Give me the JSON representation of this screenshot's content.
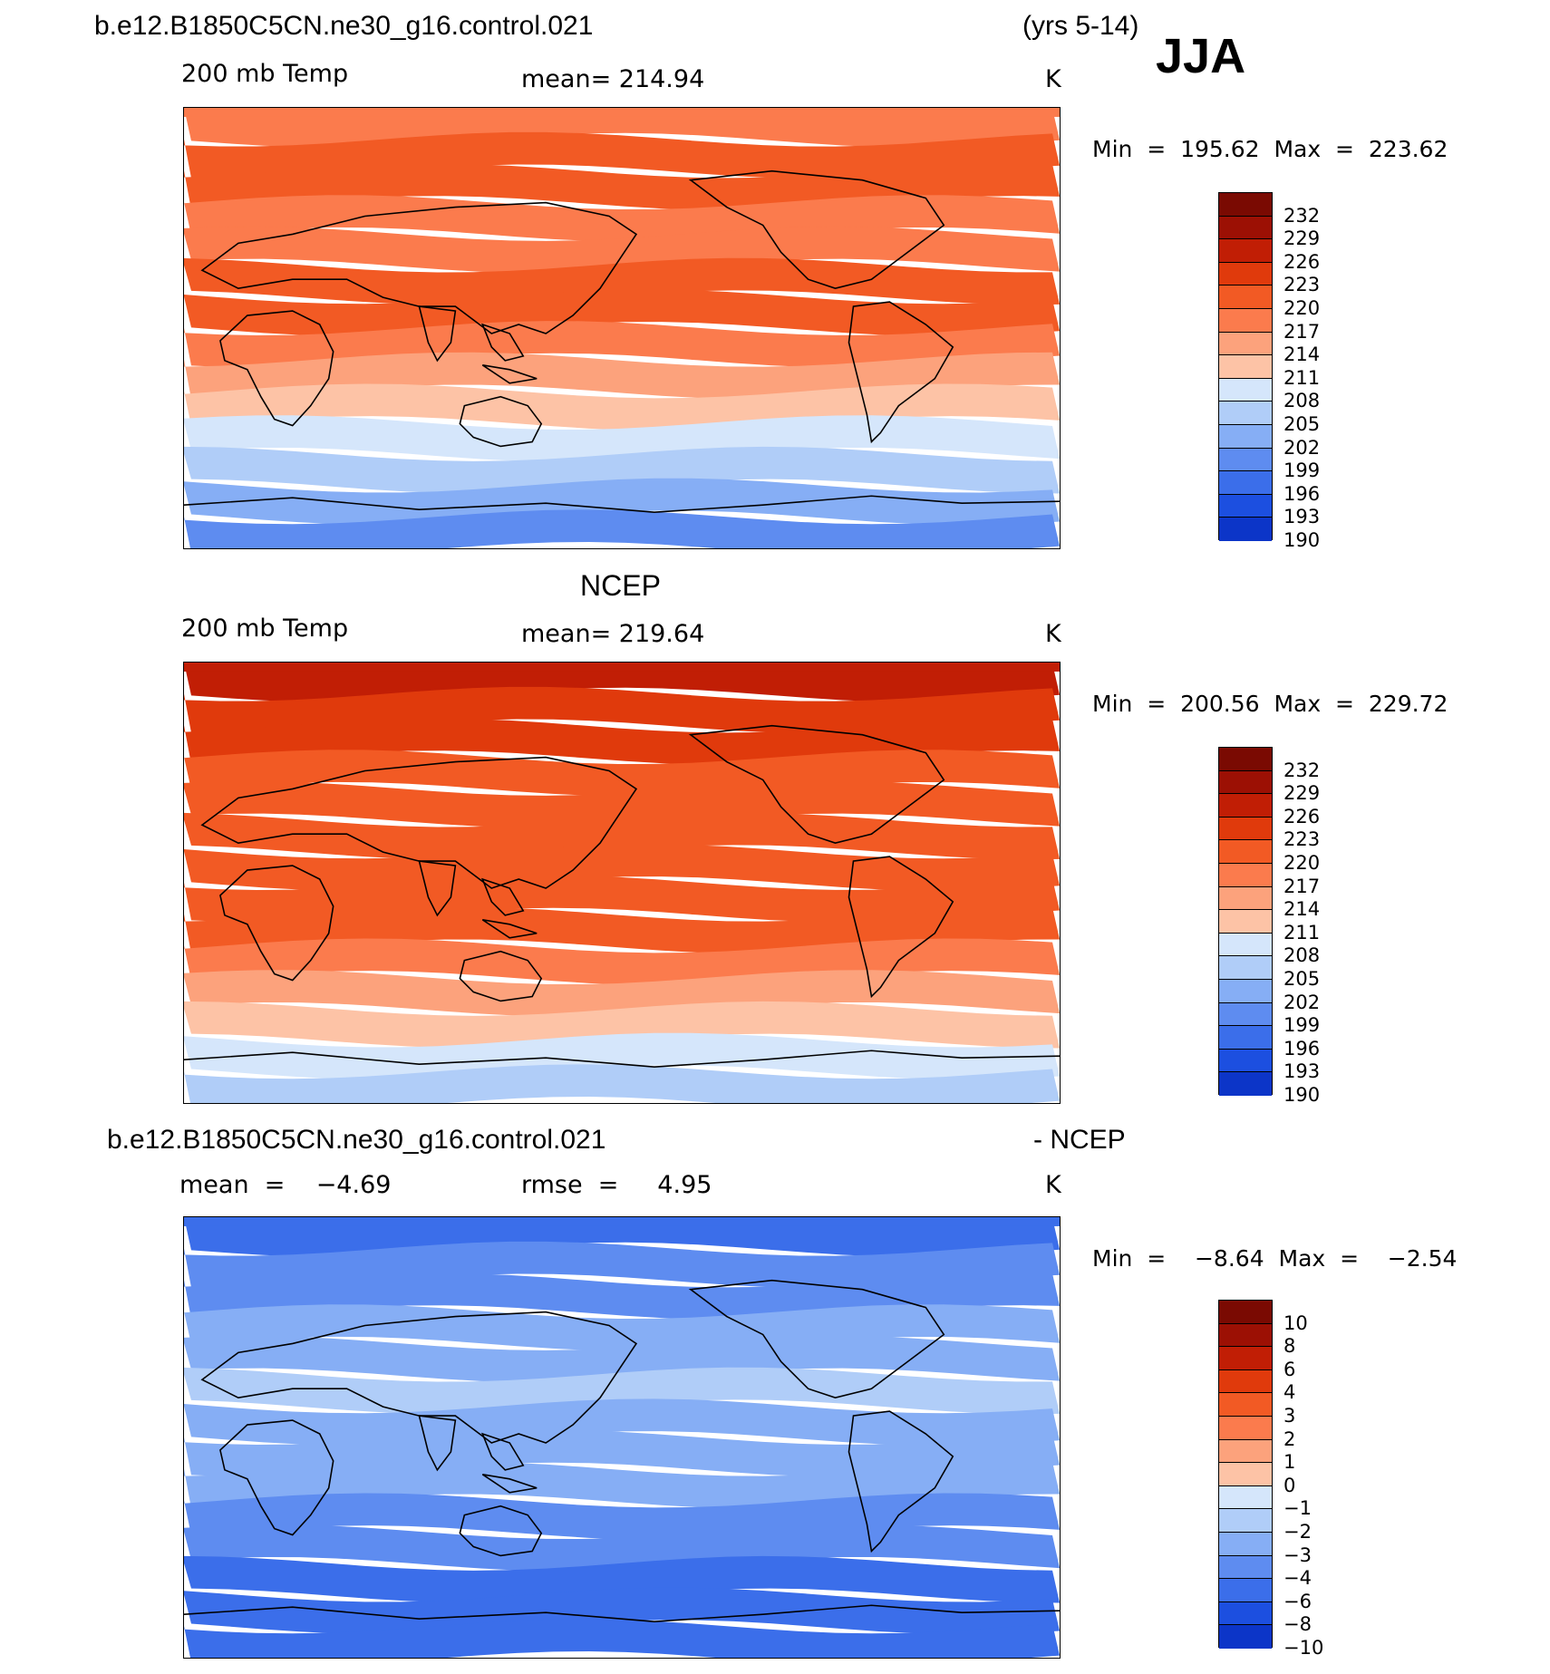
{
  "header": {
    "case_name": "b.e12.B1850C5CN.ne30_g16.control.021",
    "years": "(yrs 5-14)",
    "season": "JJA"
  },
  "colors": {
    "warm": [
      "#fde7d1",
      "#fdc3a6",
      "#fca27c",
      "#fb7b4d",
      "#f25a24",
      "#e03a0c",
      "#c11e05",
      "#9c1004",
      "#7a0a02"
    ],
    "cool": [
      "#d5e6fb",
      "#b0cdf8",
      "#86aef5",
      "#5e8cf0",
      "#3b6eea",
      "#1c4fe0",
      "#0c35c8",
      "#0a2199",
      "#061263"
    ]
  },
  "panels": [
    {
      "id": "model",
      "title": "",
      "variable": "200 mb Temp",
      "stat1": "mean= 214.94",
      "stat2": "",
      "units": "K",
      "minmax": "Min  =  195.62  Max  =  223.62",
      "colorbar_labels": [
        "232",
        "229",
        "226",
        "223",
        "220",
        "217",
        "214",
        "211",
        "208",
        "205",
        "202",
        "199",
        "196",
        "193",
        "190"
      ],
      "bands": [
        7,
        8,
        13,
        14,
        15,
        16,
        17,
        18,
        19,
        20,
        21,
        22,
        23,
        24
      ]
    },
    {
      "id": "obs",
      "title": "NCEP",
      "variable": "200 mb Temp",
      "stat1": "mean= 219.64",
      "stat2": "",
      "units": "K",
      "minmax": "Min  =  200.56  Max  =  229.72",
      "colorbar_labels": [
        "232",
        "229",
        "226",
        "223",
        "220",
        "217",
        "214",
        "211",
        "208",
        "205",
        "202",
        "199",
        "196",
        "193",
        "190"
      ],
      "bands": [
        3,
        4,
        7,
        9,
        10,
        11,
        12,
        13,
        14,
        15,
        16,
        17,
        18,
        19
      ]
    },
    {
      "id": "diff",
      "title": "b.e12.B1850C5CN.ne30_g16.control.021",
      "title_right": "- NCEP",
      "variable": "mean  =    −4.69",
      "stat1": "rmse  =     4.95",
      "stat2": "",
      "units": "K",
      "minmax": "Min  =    −8.64  Max  =    −2.54",
      "colorbar_labels": [
        "10",
        "8",
        "6",
        "4",
        "3",
        "2",
        "1",
        "0",
        "−1",
        "−2",
        "−3",
        "−4",
        "−6",
        "−8",
        "−10"
      ],
      "bands": [
        19,
        20,
        21,
        22,
        23,
        24,
        25,
        26,
        27,
        28,
        29,
        30,
        31,
        32
      ]
    }
  ]
}
